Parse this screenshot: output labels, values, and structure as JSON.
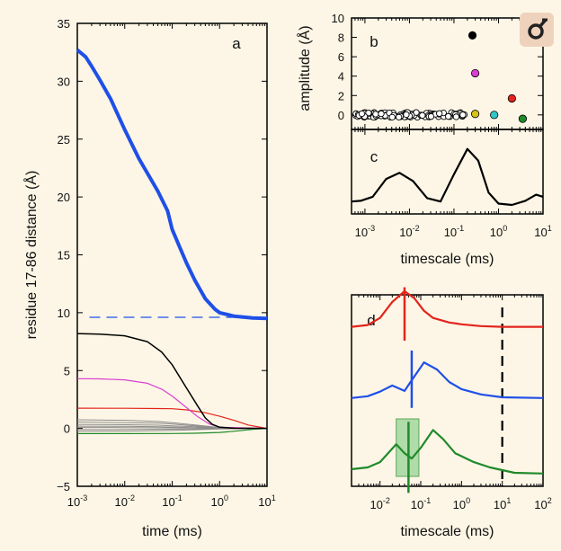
{
  "logo_icon": "microscope-logo-icon",
  "colors": {
    "background": "#fdf6e6",
    "blue": "#1f4fe8",
    "black": "#000000",
    "magenta": "#d93fd0",
    "red": "#e3241b",
    "gray": "#8c8c8c",
    "green": "#1f8a2a",
    "yellow": "#d6c21a",
    "cyan": "#32c6c8",
    "shade": "#8fd18f"
  },
  "chart_data": [
    {
      "id": "a",
      "panel_label": "a",
      "type": "line",
      "xscale": "log",
      "xlim": [
        0.001,
        10
      ],
      "ylim": [
        -5,
        35
      ],
      "xlabel": "time (ms)",
      "ylabel": "residue 17-86 distance (Å)",
      "xticks": [
        {
          "base": "10",
          "exp": "-3"
        },
        {
          "base": "10",
          "exp": "-2"
        },
        {
          "base": "10",
          "exp": "-1"
        },
        {
          "base": "10",
          "exp": "0"
        },
        {
          "base": "10",
          "exp": "1"
        }
      ],
      "yticks": [
        "−5",
        "0",
        "5",
        "10",
        "15",
        "20",
        "25",
        "30",
        "35"
      ],
      "ytick_values": [
        -5,
        0,
        5,
        10,
        15,
        20,
        25,
        30,
        35
      ],
      "dashed_line": {
        "y": 9.6,
        "x": [
          0.0018,
          2.0
        ]
      },
      "series": [
        {
          "color": "blue",
          "width": 4,
          "points": [
            [
              0.001,
              32.7
            ],
            [
              0.0015,
              32.1
            ],
            [
              0.002,
              31.3
            ],
            [
              0.003,
              30.1
            ],
            [
              0.005,
              28.5
            ],
            [
              0.01,
              25.8
            ],
            [
              0.02,
              23.3
            ],
            [
              0.05,
              20.5
            ],
            [
              0.08,
              18.8
            ],
            [
              0.1,
              17.2
            ],
            [
              0.15,
              15.5
            ],
            [
              0.2,
              14.3
            ],
            [
              0.3,
              12.8
            ],
            [
              0.5,
              11.2
            ],
            [
              0.8,
              10.3
            ],
            [
              1,
              10.0
            ],
            [
              2,
              9.7
            ],
            [
              5,
              9.55
            ],
            [
              10,
              9.5
            ]
          ]
        },
        {
          "color": "black",
          "width": 1.5,
          "points": [
            [
              0.001,
              8.2
            ],
            [
              0.003,
              8.15
            ],
            [
              0.01,
              8.0
            ],
            [
              0.03,
              7.5
            ],
            [
              0.06,
              6.6
            ],
            [
              0.1,
              5.5
            ],
            [
              0.2,
              3.5
            ],
            [
              0.35,
              1.9
            ],
            [
              0.5,
              0.9
            ],
            [
              0.7,
              0.35
            ],
            [
              1,
              0.1
            ],
            [
              2,
              0.02
            ],
            [
              10,
              0
            ]
          ]
        },
        {
          "color": "magenta",
          "width": 1.2,
          "points": [
            [
              0.001,
              4.3
            ],
            [
              0.003,
              4.28
            ],
            [
              0.01,
              4.2
            ],
            [
              0.03,
              3.9
            ],
            [
              0.06,
              3.4
            ],
            [
              0.1,
              2.8
            ],
            [
              0.2,
              1.8
            ],
            [
              0.35,
              1.0
            ],
            [
              0.6,
              0.4
            ],
            [
              1,
              0.1
            ],
            [
              10,
              0
            ]
          ]
        },
        {
          "color": "red",
          "width": 1.2,
          "points": [
            [
              0.001,
              1.75
            ],
            [
              0.01,
              1.74
            ],
            [
              0.05,
              1.72
            ],
            [
              0.1,
              1.7
            ],
            [
              0.2,
              1.6
            ],
            [
              0.5,
              1.35
            ],
            [
              1,
              1.05
            ],
            [
              2,
              0.7
            ],
            [
              4,
              0.3
            ],
            [
              10,
              0
            ]
          ]
        },
        {
          "color": "gray",
          "width": 1,
          "points": [
            [
              0.001,
              0.75
            ],
            [
              0.01,
              0.7
            ],
            [
              0.05,
              0.6
            ],
            [
              0.1,
              0.5
            ],
            [
              0.3,
              0.3
            ],
            [
              1,
              0.08
            ],
            [
              10,
              0
            ]
          ]
        },
        {
          "color": "gray",
          "width": 1,
          "points": [
            [
              0.001,
              0.55
            ],
            [
              0.01,
              0.5
            ],
            [
              0.05,
              0.45
            ],
            [
              0.1,
              0.38
            ],
            [
              0.3,
              0.22
            ],
            [
              1,
              0.05
            ],
            [
              10,
              0
            ]
          ]
        },
        {
          "color": "gray",
          "width": 1,
          "points": [
            [
              0.001,
              0.35
            ],
            [
              0.01,
              0.32
            ],
            [
              0.05,
              0.28
            ],
            [
              0.1,
              0.23
            ],
            [
              0.3,
              0.14
            ],
            [
              1,
              0.03
            ],
            [
              10,
              0
            ]
          ]
        },
        {
          "color": "gray",
          "width": 1,
          "points": [
            [
              0.001,
              0.2
            ],
            [
              0.01,
              0.18
            ],
            [
              0.05,
              0.15
            ],
            [
              0.1,
              0.12
            ],
            [
              0.3,
              0.06
            ],
            [
              1,
              0.01
            ],
            [
              10,
              0
            ]
          ]
        },
        {
          "color": "gray",
          "width": 1,
          "points": [
            [
              0.001,
              0.08
            ],
            [
              0.01,
              0.07
            ],
            [
              0.1,
              0.05
            ],
            [
              1,
              0.01
            ],
            [
              10,
              0
            ]
          ]
        },
        {
          "color": "gray",
          "width": 1,
          "points": [
            [
              0.001,
              -0.1
            ],
            [
              0.01,
              -0.09
            ],
            [
              0.1,
              -0.07
            ],
            [
              1,
              -0.02
            ],
            [
              10,
              0
            ]
          ]
        },
        {
          "color": "gray",
          "width": 1,
          "points": [
            [
              0.001,
              -0.25
            ],
            [
              0.01,
              -0.23
            ],
            [
              0.1,
              -0.18
            ],
            [
              1,
              -0.05
            ],
            [
              10,
              0
            ]
          ]
        },
        {
          "color": "green",
          "width": 1.2,
          "points": [
            [
              0.001,
              -0.45
            ],
            [
              0.01,
              -0.45
            ],
            [
              0.1,
              -0.44
            ],
            [
              0.3,
              -0.42
            ],
            [
              1,
              -0.35
            ],
            [
              2,
              -0.25
            ],
            [
              5,
              -0.08
            ],
            [
              10,
              0
            ]
          ]
        }
      ]
    },
    {
      "id": "b",
      "panel_label": "b",
      "type": "scatter",
      "xscale": "log",
      "xlim": [
        0.0005,
        10
      ],
      "ylim": [
        -1.5,
        10
      ],
      "ylabel": "amplitude (Å)",
      "yticks": [
        "0",
        "2",
        "4",
        "6",
        "8",
        "10"
      ],
      "ytick_values": [
        0,
        2,
        4,
        6,
        8,
        10
      ],
      "series": [
        {
          "name": "colored",
          "points": [
            {
              "x": 0.26,
              "y": 8.2,
              "color": "black"
            },
            {
              "x": 0.3,
              "y": 4.3,
              "color": "magenta"
            },
            {
              "x": 2.0,
              "y": 1.7,
              "color": "red"
            },
            {
              "x": 0.3,
              "y": 0.1,
              "color": "yellow"
            },
            {
              "x": 0.8,
              "y": 0.0,
              "color": "cyan"
            },
            {
              "x": 3.5,
              "y": -0.4,
              "color": "green"
            }
          ]
        }
      ]
    },
    {
      "id": "c",
      "panel_label": "c",
      "type": "line",
      "xscale": "log",
      "xlim": [
        0.0005,
        10
      ],
      "xlabel": "timescale (ms)",
      "xticks": [
        {
          "base": "10",
          "exp": "-3"
        },
        {
          "base": "10",
          "exp": "-2"
        },
        {
          "base": "10",
          "exp": "-1"
        },
        {
          "base": "10",
          "exp": "0"
        },
        {
          "base": "10",
          "exp": "1"
        }
      ],
      "series": [
        {
          "color": "black",
          "points": [
            [
              0.0005,
              0.05
            ],
            [
              0.0008,
              0.06
            ],
            [
              0.0015,
              0.12
            ],
            [
              0.003,
              0.38
            ],
            [
              0.006,
              0.47
            ],
            [
              0.012,
              0.35
            ],
            [
              0.025,
              0.1
            ],
            [
              0.05,
              0.05
            ],
            [
              0.1,
              0.45
            ],
            [
              0.2,
              0.82
            ],
            [
              0.35,
              0.65
            ],
            [
              0.6,
              0.18
            ],
            [
              1,
              0.02
            ],
            [
              2,
              0.0
            ],
            [
              4,
              0.06
            ],
            [
              7,
              0.15
            ],
            [
              10,
              0.12
            ]
          ]
        }
      ]
    },
    {
      "id": "d",
      "panel_label": "d",
      "type": "line",
      "xscale": "log",
      "xlim": [
        0.002,
        100
      ],
      "xlabel": "timescale (ms)",
      "xticks": [
        {
          "base": "10",
          "exp": "-2"
        },
        {
          "base": "10",
          "exp": "-1"
        },
        {
          "base": "10",
          "exp": "0"
        },
        {
          "base": "10",
          "exp": "1"
        },
        {
          "base": "10",
          "exp": "2"
        }
      ],
      "dashed_vline": {
        "x": 10
      },
      "shaded_band": {
        "x": [
          0.025,
          0.09
        ],
        "color": "shade"
      },
      "series": [
        {
          "color": "red",
          "offset": 3.6,
          "points": [
            [
              0.002,
              0.0
            ],
            [
              0.005,
              0.05
            ],
            [
              0.01,
              0.25
            ],
            [
              0.02,
              0.7
            ],
            [
              0.04,
              1.0
            ],
            [
              0.07,
              0.8
            ],
            [
              0.12,
              0.45
            ],
            [
              0.2,
              0.25
            ],
            [
              0.5,
              0.12
            ],
            [
              1,
              0.07
            ],
            [
              3,
              0.02
            ],
            [
              10,
              0.0
            ],
            [
              100,
              0.0
            ]
          ],
          "marker_x": 0.04,
          "marker_y": [
            -0.35,
            1.0
          ]
        },
        {
          "color": "blue",
          "offset": 1.8,
          "points": [
            [
              0.002,
              0.0
            ],
            [
              0.005,
              0.05
            ],
            [
              0.01,
              0.18
            ],
            [
              0.02,
              0.35
            ],
            [
              0.04,
              0.2
            ],
            [
              0.06,
              0.5
            ],
            [
              0.12,
              1.0
            ],
            [
              0.25,
              0.8
            ],
            [
              0.5,
              0.45
            ],
            [
              1,
              0.25
            ],
            [
              3,
              0.1
            ],
            [
              10,
              0.02
            ],
            [
              100,
              0.0
            ]
          ],
          "marker_x": 0.06,
          "marker_y": [
            -0.25,
            1.2
          ]
        },
        {
          "color": "green",
          "offset": 0.0,
          "points": [
            [
              0.002,
              0.0
            ],
            [
              0.005,
              0.05
            ],
            [
              0.01,
              0.2
            ],
            [
              0.025,
              0.7
            ],
            [
              0.04,
              0.45
            ],
            [
              0.06,
              0.3
            ],
            [
              0.1,
              0.6
            ],
            [
              0.2,
              1.1
            ],
            [
              0.35,
              0.85
            ],
            [
              0.7,
              0.45
            ],
            [
              2,
              0.2
            ],
            [
              5,
              0.05
            ],
            [
              20,
              -0.1
            ],
            [
              100,
              -0.12
            ]
          ],
          "marker_x": 0.05,
          "marker_y": [
            -0.6,
            1.2
          ]
        }
      ]
    }
  ]
}
